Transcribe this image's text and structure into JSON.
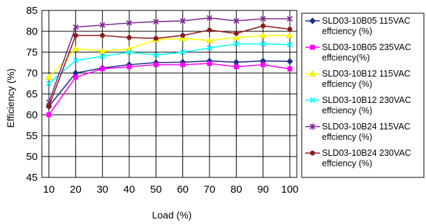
{
  "chart_data": {
    "type": "line",
    "title": "",
    "xlabel": "Load (%)",
    "ylabel": "Efficiency (%)",
    "x": [
      10,
      20,
      30,
      40,
      50,
      60,
      70,
      80,
      90,
      100
    ],
    "ylim": [
      45,
      85
    ],
    "yticks": [
      45,
      50,
      55,
      60,
      65,
      70,
      75,
      80,
      85
    ],
    "grid": true,
    "legend_position": "right",
    "series": [
      {
        "name": "SLD03-10B05 115VAC effciency (%)",
        "line1": "SLD03-10B05 115VAC",
        "line2": "effciency (%)",
        "color": "#1f2f86",
        "marker": "diamond",
        "values": [
          62.0,
          70.0,
          71.2,
          72.0,
          72.5,
          72.6,
          72.9,
          72.6,
          72.9,
          72.8
        ]
      },
      {
        "name": "SLD03-10B05 235VAC effciency(%)",
        "line1": "SLD03-10B05 235VAC",
        "line2": "effciency(%)",
        "color": "#ff00ff",
        "marker": "square",
        "values": [
          60.0,
          69.0,
          71.0,
          71.5,
          72.0,
          72.0,
          72.3,
          71.5,
          72.0,
          71.0
        ]
      },
      {
        "name": "SLD03-10B12 115VAC effciency (%)",
        "line1": "SLD03-10B12 115VAC",
        "line2": "effciency (%)",
        "color": "#ffff00",
        "marker": "triangle",
        "values": [
          69.0,
          75.8,
          75.3,
          75.8,
          78.0,
          78.3,
          77.8,
          78.5,
          79.0,
          79.0
        ]
      },
      {
        "name": "SLD03-10B12 230VAC effciency (%)",
        "line1": "SLD03-10B12 230VAC",
        "line2": "effciency (%)",
        "color": "#00ffff",
        "marker": "x",
        "values": [
          67.5,
          73.0,
          74.0,
          75.0,
          74.3,
          75.0,
          76.0,
          77.0,
          77.0,
          76.8
        ]
      },
      {
        "name": "SLD03-10B24 115VAC effciency (%)",
        "line1": "SLD03-10B24 115VAC",
        "line2": "effciency (%)",
        "color": "#7a2a8c",
        "marker": "star",
        "values": [
          63.0,
          81.0,
          81.5,
          82.0,
          82.3,
          82.5,
          83.2,
          82.5,
          83.0,
          83.0
        ]
      },
      {
        "name": "SLD03-10B24 230VAC effciency (%)",
        "line1": "SLD03-10B24 230VAC",
        "line2": "effciency (%)",
        "color": "#8b1a1a",
        "marker": "circle",
        "values": [
          62.0,
          79.0,
          79.0,
          78.5,
          78.3,
          79.0,
          80.3,
          79.5,
          81.3,
          80.5
        ]
      }
    ]
  }
}
